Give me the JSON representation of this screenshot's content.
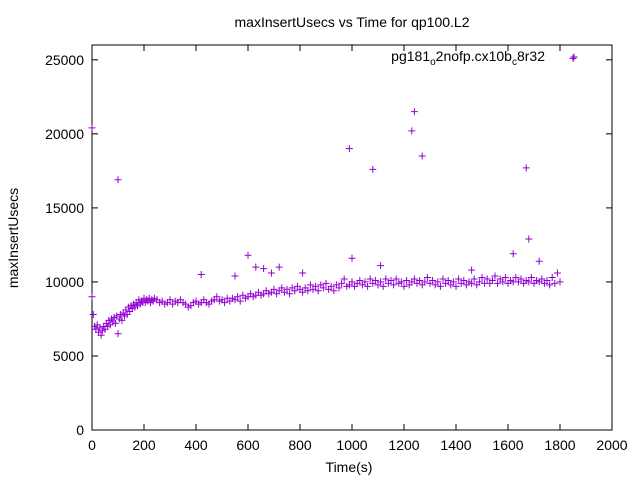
{
  "chart_data": {
    "type": "scatter",
    "title": "maxInsertUsecs vs Time for qp100.L2",
    "xlabel": "Time(s)",
    "ylabel": "maxInsertUsecs",
    "xlim": [
      0,
      2000
    ],
    "ylim": [
      0,
      26000
    ],
    "xticks": [
      0,
      200,
      400,
      600,
      800,
      1000,
      1200,
      1400,
      1600,
      1800,
      2000
    ],
    "yticks": [
      0,
      5000,
      10000,
      15000,
      20000,
      25000
    ],
    "xtick_labels": [
      "0",
      "200",
      "400",
      "600",
      "800",
      "1000",
      "1200",
      "1400",
      "1600",
      "1800",
      "2000"
    ],
    "ytick_labels": [
      "0",
      "5000",
      "10000",
      "15000",
      "20000",
      "25000"
    ],
    "grid": false,
    "legend_placement": "top-right",
    "marker": "+",
    "series": [
      {
        "name": "pg181_o2nofp.cx10b_c8r32",
        "legend": {
          "base1": "pg181",
          "sub1": "o",
          "mid": "2nofp.cx10b",
          "sub2": "c",
          "tail": "8r32"
        },
        "color": "#9400d3",
        "points": [
          [
            0,
            20400
          ],
          [
            0,
            9000
          ],
          [
            5,
            7800
          ],
          [
            10,
            7000
          ],
          [
            15,
            6800
          ],
          [
            20,
            7100
          ],
          [
            25,
            6600
          ],
          [
            30,
            6900
          ],
          [
            35,
            6400
          ],
          [
            40,
            6700
          ],
          [
            45,
            7000
          ],
          [
            50,
            6800
          ],
          [
            55,
            7200
          ],
          [
            60,
            7000
          ],
          [
            65,
            7400
          ],
          [
            70,
            7100
          ],
          [
            75,
            7500
          ],
          [
            80,
            7300
          ],
          [
            85,
            7600
          ],
          [
            90,
            7200
          ],
          [
            95,
            7700
          ],
          [
            100,
            16900
          ],
          [
            100,
            6500
          ],
          [
            105,
            7500
          ],
          [
            110,
            7800
          ],
          [
            115,
            7400
          ],
          [
            120,
            7900
          ],
          [
            125,
            7700
          ],
          [
            130,
            8100
          ],
          [
            135,
            7800
          ],
          [
            140,
            8300
          ],
          [
            145,
            8000
          ],
          [
            150,
            8400
          ],
          [
            155,
            8200
          ],
          [
            160,
            8500
          ],
          [
            165,
            8300
          ],
          [
            170,
            8600
          ],
          [
            175,
            8400
          ],
          [
            180,
            8800
          ],
          [
            185,
            8500
          ],
          [
            190,
            8700
          ],
          [
            195,
            8600
          ],
          [
            200,
            8900
          ],
          [
            205,
            8600
          ],
          [
            210,
            8800
          ],
          [
            215,
            8700
          ],
          [
            220,
            8900
          ],
          [
            225,
            8600
          ],
          [
            230,
            8800
          ],
          [
            235,
            8700
          ],
          [
            240,
            8900
          ],
          [
            250,
            8800
          ],
          [
            260,
            8600
          ],
          [
            270,
            8700
          ],
          [
            280,
            8500
          ],
          [
            290,
            8600
          ],
          [
            300,
            8800
          ],
          [
            310,
            8500
          ],
          [
            320,
            8700
          ],
          [
            330,
            8600
          ],
          [
            340,
            8800
          ],
          [
            350,
            8600
          ],
          [
            360,
            8500
          ],
          [
            370,
            8300
          ],
          [
            380,
            8400
          ],
          [
            390,
            8600
          ],
          [
            400,
            8700
          ],
          [
            410,
            8500
          ],
          [
            420,
            10500
          ],
          [
            420,
            8600
          ],
          [
            430,
            8800
          ],
          [
            440,
            8600
          ],
          [
            450,
            8500
          ],
          [
            460,
            8700
          ],
          [
            470,
            8800
          ],
          [
            480,
            9000
          ],
          [
            490,
            8700
          ],
          [
            500,
            8800
          ],
          [
            510,
            8600
          ],
          [
            520,
            8900
          ],
          [
            530,
            8700
          ],
          [
            540,
            8900
          ],
          [
            550,
            10400
          ],
          [
            550,
            8800
          ],
          [
            560,
            9000
          ],
          [
            570,
            8700
          ],
          [
            580,
            9100
          ],
          [
            590,
            8900
          ],
          [
            600,
            11800
          ],
          [
            600,
            9000
          ],
          [
            610,
            9200
          ],
          [
            620,
            9000
          ],
          [
            630,
            11000
          ],
          [
            630,
            9100
          ],
          [
            640,
            9300
          ],
          [
            650,
            9100
          ],
          [
            660,
            10900
          ],
          [
            660,
            9200
          ],
          [
            670,
            9400
          ],
          [
            680,
            9200
          ],
          [
            690,
            10600
          ],
          [
            690,
            9300
          ],
          [
            700,
            9500
          ],
          [
            710,
            9200
          ],
          [
            720,
            11000
          ],
          [
            720,
            9400
          ],
          [
            730,
            9600
          ],
          [
            740,
            9300
          ],
          [
            750,
            9500
          ],
          [
            760,
            9200
          ],
          [
            770,
            9600
          ],
          [
            780,
            9400
          ],
          [
            790,
            9700
          ],
          [
            800,
            9500
          ],
          [
            810,
            10600
          ],
          [
            810,
            9300
          ],
          [
            820,
            9600
          ],
          [
            830,
            9400
          ],
          [
            840,
            9800
          ],
          [
            850,
            9500
          ],
          [
            860,
            9700
          ],
          [
            870,
            9400
          ],
          [
            880,
            9800
          ],
          [
            890,
            9600
          ],
          [
            900,
            9900
          ],
          [
            910,
            9500
          ],
          [
            920,
            9700
          ],
          [
            930,
            9400
          ],
          [
            940,
            9800
          ],
          [
            950,
            9600
          ],
          [
            960,
            9900
          ],
          [
            970,
            10200
          ],
          [
            980,
            9700
          ],
          [
            990,
            19000
          ],
          [
            990,
            9800
          ],
          [
            1000,
            11600
          ],
          [
            1000,
            10000
          ],
          [
            1010,
            9700
          ],
          [
            1020,
            9900
          ],
          [
            1030,
            10100
          ],
          [
            1040,
            9800
          ],
          [
            1050,
            10000
          ],
          [
            1060,
            9700
          ],
          [
            1070,
            10200
          ],
          [
            1080,
            17600
          ],
          [
            1080,
            9900
          ],
          [
            1090,
            10100
          ],
          [
            1100,
            9800
          ],
          [
            1110,
            11100
          ],
          [
            1110,
            10000
          ],
          [
            1120,
            9700
          ],
          [
            1130,
            10200
          ],
          [
            1140,
            9900
          ],
          [
            1150,
            10100
          ],
          [
            1160,
            9800
          ],
          [
            1170,
            10200
          ],
          [
            1180,
            9900
          ],
          [
            1190,
            10000
          ],
          [
            1200,
            9700
          ],
          [
            1210,
            10100
          ],
          [
            1220,
            9800
          ],
          [
            1230,
            20200
          ],
          [
            1230,
            10000
          ],
          [
            1240,
            21500
          ],
          [
            1240,
            10200
          ],
          [
            1250,
            9900
          ],
          [
            1260,
            10100
          ],
          [
            1270,
            18500
          ],
          [
            1270,
            9800
          ],
          [
            1280,
            10000
          ],
          [
            1290,
            10300
          ],
          [
            1300,
            9900
          ],
          [
            1310,
            10100
          ],
          [
            1320,
            9800
          ],
          [
            1330,
            10000
          ],
          [
            1340,
            9700
          ],
          [
            1350,
            10200
          ],
          [
            1360,
            9900
          ],
          [
            1370,
            10100
          ],
          [
            1380,
            9800
          ],
          [
            1390,
            10000
          ],
          [
            1400,
            9700
          ],
          [
            1410,
            10200
          ],
          [
            1420,
            9900
          ],
          [
            1430,
            10100
          ],
          [
            1440,
            9800
          ],
          [
            1450,
            10000
          ],
          [
            1460,
            10800
          ],
          [
            1460,
            9900
          ],
          [
            1470,
            10200
          ],
          [
            1480,
            9800
          ],
          [
            1490,
            10000
          ],
          [
            1500,
            10300
          ],
          [
            1510,
            9900
          ],
          [
            1520,
            10200
          ],
          [
            1530,
            9900
          ],
          [
            1540,
            10100
          ],
          [
            1550,
            10400
          ],
          [
            1560,
            9900
          ],
          [
            1570,
            10200
          ],
          [
            1580,
            10000
          ],
          [
            1590,
            10300
          ],
          [
            1600,
            9900
          ],
          [
            1610,
            10100
          ],
          [
            1620,
            11900
          ],
          [
            1620,
            10000
          ],
          [
            1630,
            10300
          ],
          [
            1640,
            10000
          ],
          [
            1650,
            10200
          ],
          [
            1660,
            9900
          ],
          [
            1670,
            17700
          ],
          [
            1670,
            10100
          ],
          [
            1680,
            12900
          ],
          [
            1680,
            10000
          ],
          [
            1690,
            10300
          ],
          [
            1700,
            9900
          ],
          [
            1710,
            10100
          ],
          [
            1720,
            11400
          ],
          [
            1720,
            10000
          ],
          [
            1730,
            10200
          ],
          [
            1740,
            9900
          ],
          [
            1750,
            10100
          ],
          [
            1760,
            9800
          ],
          [
            1770,
            10300
          ],
          [
            1780,
            9900
          ],
          [
            1790,
            10600
          ],
          [
            1800,
            10000
          ],
          [
            1850,
            25100
          ]
        ]
      }
    ]
  }
}
